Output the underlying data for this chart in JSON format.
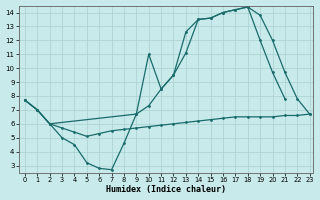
{
  "xlabel": "Humidex (Indice chaleur)",
  "bg_color": "#c8eaea",
  "grid_color": "#a8d0ce",
  "line_color": "#1a6b6b",
  "xlim": [
    -0.5,
    23.3
  ],
  "ylim": [
    2.5,
    14.5
  ],
  "yticks": [
    3,
    4,
    5,
    6,
    7,
    8,
    9,
    10,
    11,
    12,
    13,
    14
  ],
  "xticks": [
    0,
    1,
    2,
    3,
    4,
    5,
    6,
    7,
    8,
    9,
    10,
    11,
    12,
    13,
    14,
    15,
    16,
    17,
    18,
    19,
    20,
    21,
    22,
    23
  ],
  "line1": {
    "x": [
      0,
      1,
      2,
      3,
      4,
      5,
      6,
      7,
      8,
      9,
      10,
      11,
      12,
      13,
      14,
      15,
      16,
      17,
      18,
      19,
      20,
      21
    ],
    "y": [
      7.7,
      7.0,
      6.0,
      5.0,
      4.5,
      3.2,
      2.8,
      2.7,
      4.6,
      6.7,
      11.0,
      8.5,
      9.5,
      12.6,
      13.5,
      13.6,
      14.0,
      14.2,
      14.4,
      12.0,
      9.7,
      7.8
    ]
  },
  "line2": {
    "x": [
      0,
      1,
      2,
      3,
      4,
      5,
      6,
      7,
      8,
      9,
      10,
      11,
      12,
      13,
      14,
      15,
      16,
      17,
      18,
      19,
      20,
      21,
      22,
      23
    ],
    "y": [
      7.7,
      7.0,
      6.0,
      5.7,
      5.4,
      5.1,
      5.3,
      5.5,
      5.6,
      5.7,
      5.8,
      5.9,
      6.0,
      6.1,
      6.2,
      6.3,
      6.4,
      6.5,
      6.5,
      6.5,
      6.5,
      6.6,
      6.6,
      6.7
    ]
  },
  "line3": {
    "x": [
      0,
      1,
      2,
      9,
      10,
      11,
      12,
      13,
      14,
      15,
      16,
      17,
      18,
      19,
      20,
      21,
      22,
      23
    ],
    "y": [
      7.7,
      7.0,
      6.0,
      6.7,
      7.3,
      8.5,
      9.5,
      11.1,
      13.5,
      13.6,
      14.0,
      14.2,
      14.4,
      13.8,
      12.0,
      9.7,
      7.8,
      6.7
    ]
  }
}
